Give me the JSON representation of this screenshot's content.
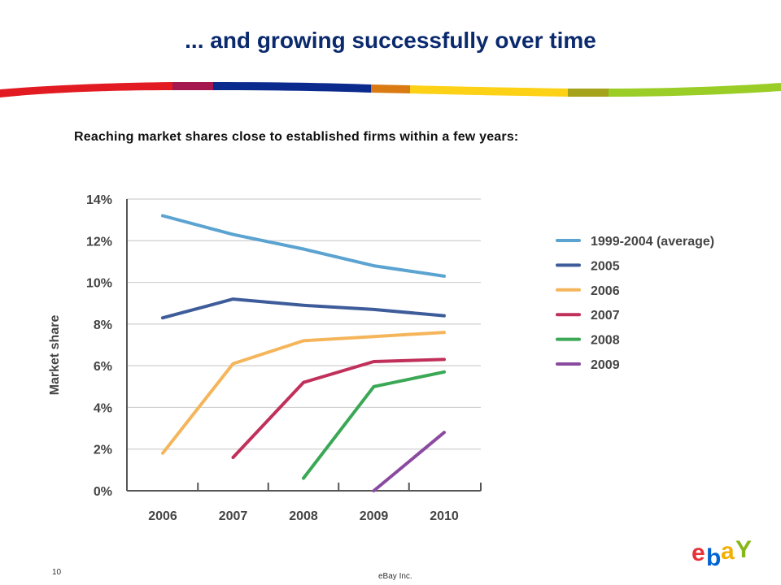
{
  "slide": {
    "title": "... and growing successfully over time",
    "subtitle": "Reaching market shares close to established firms within a few years:",
    "page_number": "10",
    "company": "eBay Inc.",
    "logo_letters": [
      "e",
      "b",
      "a",
      "Y"
    ],
    "logo_colors": [
      "#e53238",
      "#0064d2",
      "#f5af02",
      "#86b817"
    ]
  },
  "chart_data": {
    "type": "line",
    "title": "",
    "xlabel": "",
    "ylabel": "Market share",
    "categories": [
      "2006",
      "2007",
      "2008",
      "2009",
      "2010"
    ],
    "y_ticks": [
      "0%",
      "2%",
      "4%",
      "6%",
      "8%",
      "10%",
      "12%",
      "14%"
    ],
    "ylim": [
      0,
      14
    ],
    "grid": true,
    "legend_position": "right",
    "series": [
      {
        "name": "1999-2004 (average)",
        "color": "#5ba3d0",
        "values": [
          13.2,
          12.3,
          11.6,
          10.8,
          10.3
        ]
      },
      {
        "name": "2005",
        "color": "#3e5c9a",
        "values": [
          8.3,
          9.2,
          8.9,
          8.7,
          8.4
        ]
      },
      {
        "name": "2006",
        "color": "#f5b55a",
        "values": [
          1.8,
          6.1,
          7.2,
          7.4,
          7.6
        ]
      },
      {
        "name": "2007",
        "color": "#c0305a",
        "values": [
          null,
          1.6,
          5.2,
          6.2,
          6.3
        ]
      },
      {
        "name": "2008",
        "color": "#3aa855",
        "values": [
          null,
          null,
          0.6,
          5.0,
          5.7
        ]
      },
      {
        "name": "2009",
        "color": "#8a4aa0",
        "values": [
          null,
          null,
          null,
          0.0,
          2.8
        ]
      }
    ]
  }
}
